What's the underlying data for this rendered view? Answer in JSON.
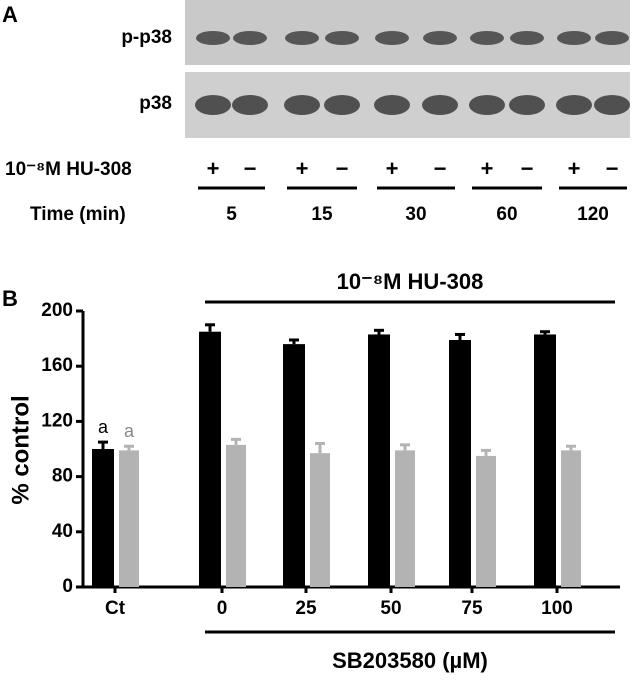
{
  "panel_a": {
    "label": "A",
    "rows": [
      "p-p38",
      "p38"
    ],
    "treatment_label": "10⁻⁸M HU-308",
    "signs": [
      "+",
      "−",
      "+",
      "−",
      "+",
      "−",
      "+",
      "−",
      "+",
      "−"
    ],
    "time_label": "Time (min)",
    "times": [
      "5",
      "15",
      "30",
      "60",
      "120"
    ]
  },
  "chart_data": {
    "type": "bar",
    "panel_label": "B",
    "header": "10⁻⁸M HU-308",
    "ylabel": "% control",
    "xlabel": "SB203580 (µM)",
    "categories": [
      "Ct",
      "0",
      "25",
      "50",
      "75",
      "100"
    ],
    "series": [
      {
        "color": "#000000",
        "values": [
          100,
          185,
          176,
          183,
          179,
          183
        ],
        "errors": [
          5,
          5,
          3,
          3,
          4,
          2
        ],
        "labels": [
          "a",
          null,
          null,
          null,
          null,
          null
        ]
      },
      {
        "color": "#b3b3b3",
        "values": [
          99,
          103,
          97,
          99,
          95,
          99
        ],
        "errors": [
          3,
          4,
          7,
          4,
          4,
          3
        ],
        "labels": [
          "a",
          null,
          null,
          null,
          null,
          null
        ]
      }
    ],
    "ylim": [
      0,
      200
    ],
    "yticks": [
      0,
      40,
      80,
      120,
      160,
      200
    ]
  }
}
